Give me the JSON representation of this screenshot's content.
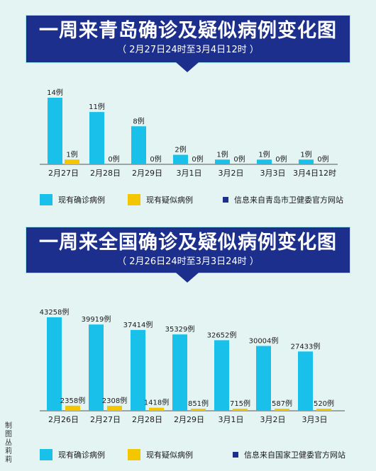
{
  "colors": {
    "confirmed": "#19c0ea",
    "suspected": "#f3c600",
    "banner": "#1c2f8c",
    "source_marker": "#1c2f8c",
    "axis": "#555555"
  },
  "credit": "制图 丛莉莉",
  "chart_data": [
    {
      "type": "bar",
      "title": "一周来青岛确诊及疑似病例变化图",
      "subtitle": "（ 2月27日24时至3月4日12时 ）",
      "categories": [
        "2月27日",
        "2月28日",
        "2月29日",
        "3月1日",
        "3月2日",
        "3月3日",
        "3月4日12时"
      ],
      "series": [
        {
          "name": "现有确诊病例",
          "values": [
            14,
            11,
            8,
            2,
            1,
            1,
            1
          ],
          "labels": [
            "14例",
            "11例",
            "8例",
            "2例",
            "1例",
            "1例",
            "1例"
          ]
        },
        {
          "name": "现有疑似病例",
          "values": [
            1,
            0,
            0,
            0,
            0,
            0,
            0
          ],
          "labels": [
            "1例",
            "0例",
            "0例",
            "0例",
            "0例",
            "0例",
            "0例"
          ]
        }
      ],
      "ylim": [
        0,
        14
      ],
      "grid": false,
      "legend_position": "bottom",
      "source_note": "信息来自青岛市卫健委官方网站"
    },
    {
      "type": "bar",
      "title": "一周来全国确诊及疑似病例变化图",
      "subtitle": "（ 2月26日24时至3月3日24时 ）",
      "categories": [
        "2月26日",
        "2月27日",
        "2月28日",
        "2月29日",
        "3月1日",
        "3月2日",
        "3月3日"
      ],
      "series": [
        {
          "name": "现有确诊病例",
          "values": [
            43258,
            39919,
            37414,
            35329,
            32652,
            30004,
            27433
          ],
          "labels": [
            "43258例",
            "39919例",
            "37414例",
            "35329例",
            "32652例",
            "30004例",
            "27433例"
          ]
        },
        {
          "name": "现有疑似病例",
          "values": [
            2358,
            2308,
            1418,
            851,
            715,
            587,
            520
          ],
          "labels": [
            "2358例",
            "2308例",
            "1418例",
            "851例",
            "715例",
            "587例",
            "520例"
          ]
        }
      ],
      "ylim": [
        0,
        43258
      ],
      "grid": false,
      "legend_position": "bottom",
      "source_note": "信息来自国家卫健委官方网站"
    }
  ]
}
